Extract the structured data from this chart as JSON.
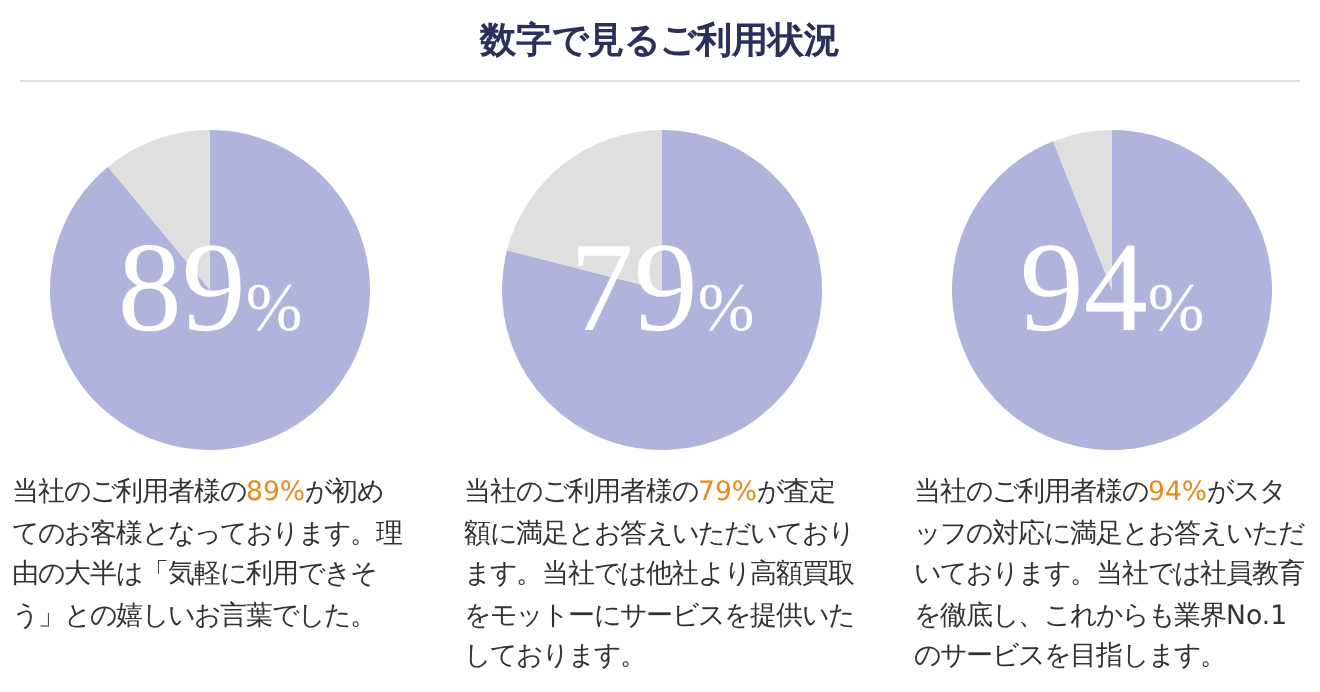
{
  "chart_data": [
    {
      "type": "pie",
      "categories": [
        null,
        null
      ],
      "values": [
        89,
        11
      ],
      "colors": [
        "#b0b3dc",
        "#dfdfdf"
      ],
      "value_labels": [
        "89%",
        null
      ],
      "annotations": [
        "当社のご利用者様の",
        "89%",
        "が初めてのお客様となっております。理由の大半は「気軽に利用できそう」との嬉しいお言葉でした。"
      ]
    },
    {
      "type": "pie",
      "title": "数字で見るご利用状況",
      "categories": [
        null,
        null
      ],
      "values": [
        79,
        21
      ],
      "colors": [
        "#b0b3dc",
        "#dfdfdf"
      ],
      "value_labels": [
        "79%",
        null
      ],
      "annotations": [
        "当社のご利用者様の",
        "79%",
        "が査定額に満足とお答えいただいております。当社では他社より高額買取をモットーにサービスを提供いたしております。"
      ]
    },
    {
      "type": "pie",
      "categories": [
        null,
        null
      ],
      "values": [
        94,
        6
      ],
      "colors": [
        "#b0b3dc",
        "#dfdfdf"
      ],
      "value_labels": [
        "94%",
        null
      ],
      "annotations": [
        "当社のご利用者様の",
        "94%",
        "がスタッフの対応に満足とお答えいただいております。当社では社員教育を徹底し、これからも業界No.1のサービスを目指します。"
      ]
    }
  ]
}
